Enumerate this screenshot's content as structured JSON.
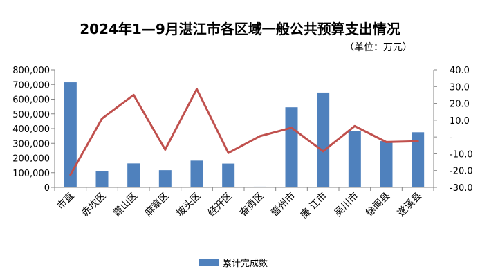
{
  "chart_data": {
    "type": "bar",
    "title": "2024年1—9月湛江市各区域一般公共预算支出情况",
    "subtitle": "（单位：万元）",
    "categories": [
      "市直",
      "赤坎区",
      "霞山区",
      "麻章区",
      "坡头区",
      "经开区",
      "奋勇区",
      "雷州市",
      "廉 江市",
      "吴川市",
      "徐闻县",
      "遂溪县"
    ],
    "series": [
      {
        "name": "累计完成数",
        "type": "bar",
        "axis": "left",
        "color": "#4f81bd",
        "values": [
          715000,
          112000,
          163000,
          117000,
          182000,
          162000,
          5000,
          545000,
          645000,
          385000,
          315000,
          375000
        ]
      },
      {
        "type": "line",
        "axis": "right",
        "color": "#c0504d",
        "values": [
          -22.5,
          11.0,
          25.0,
          -7.5,
          28.5,
          -9.5,
          0.5,
          5.5,
          -8.5,
          6.5,
          -3.0,
          -2.5
        ]
      }
    ],
    "y_left": {
      "ylim": [
        0,
        800000
      ],
      "ticks": [
        "0",
        "100,000",
        "200,000",
        "300,000",
        "400,000",
        "500,000",
        "600,000",
        "700,000",
        "800,000"
      ]
    },
    "y_right": {
      "ylim": [
        -30,
        40
      ],
      "ticks": [
        "-30.0",
        "-20.0",
        "-10.0",
        "-",
        "10.0",
        "20.0",
        "30.0",
        "40.0"
      ]
    },
    "grid": false,
    "legend_position": "bottom"
  }
}
